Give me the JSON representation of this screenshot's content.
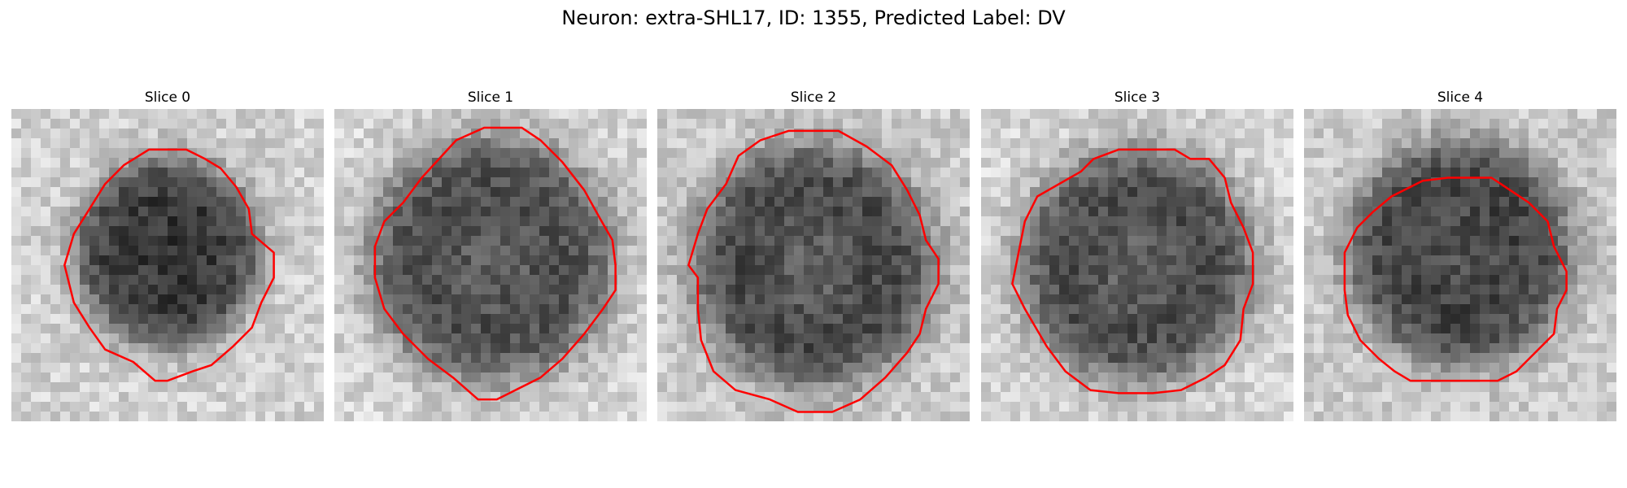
{
  "title": "Neuron: extra-SHL17, ID: 1355, Predicted Label: DV",
  "panels": [
    {
      "label": "Slice 0"
    },
    {
      "label": "Slice 1"
    },
    {
      "label": "Slice 2"
    },
    {
      "label": "Slice 3"
    },
    {
      "label": "Slice 4"
    }
  ],
  "colors": {
    "contour": "#ff0000",
    "background": "#ffffff"
  }
}
